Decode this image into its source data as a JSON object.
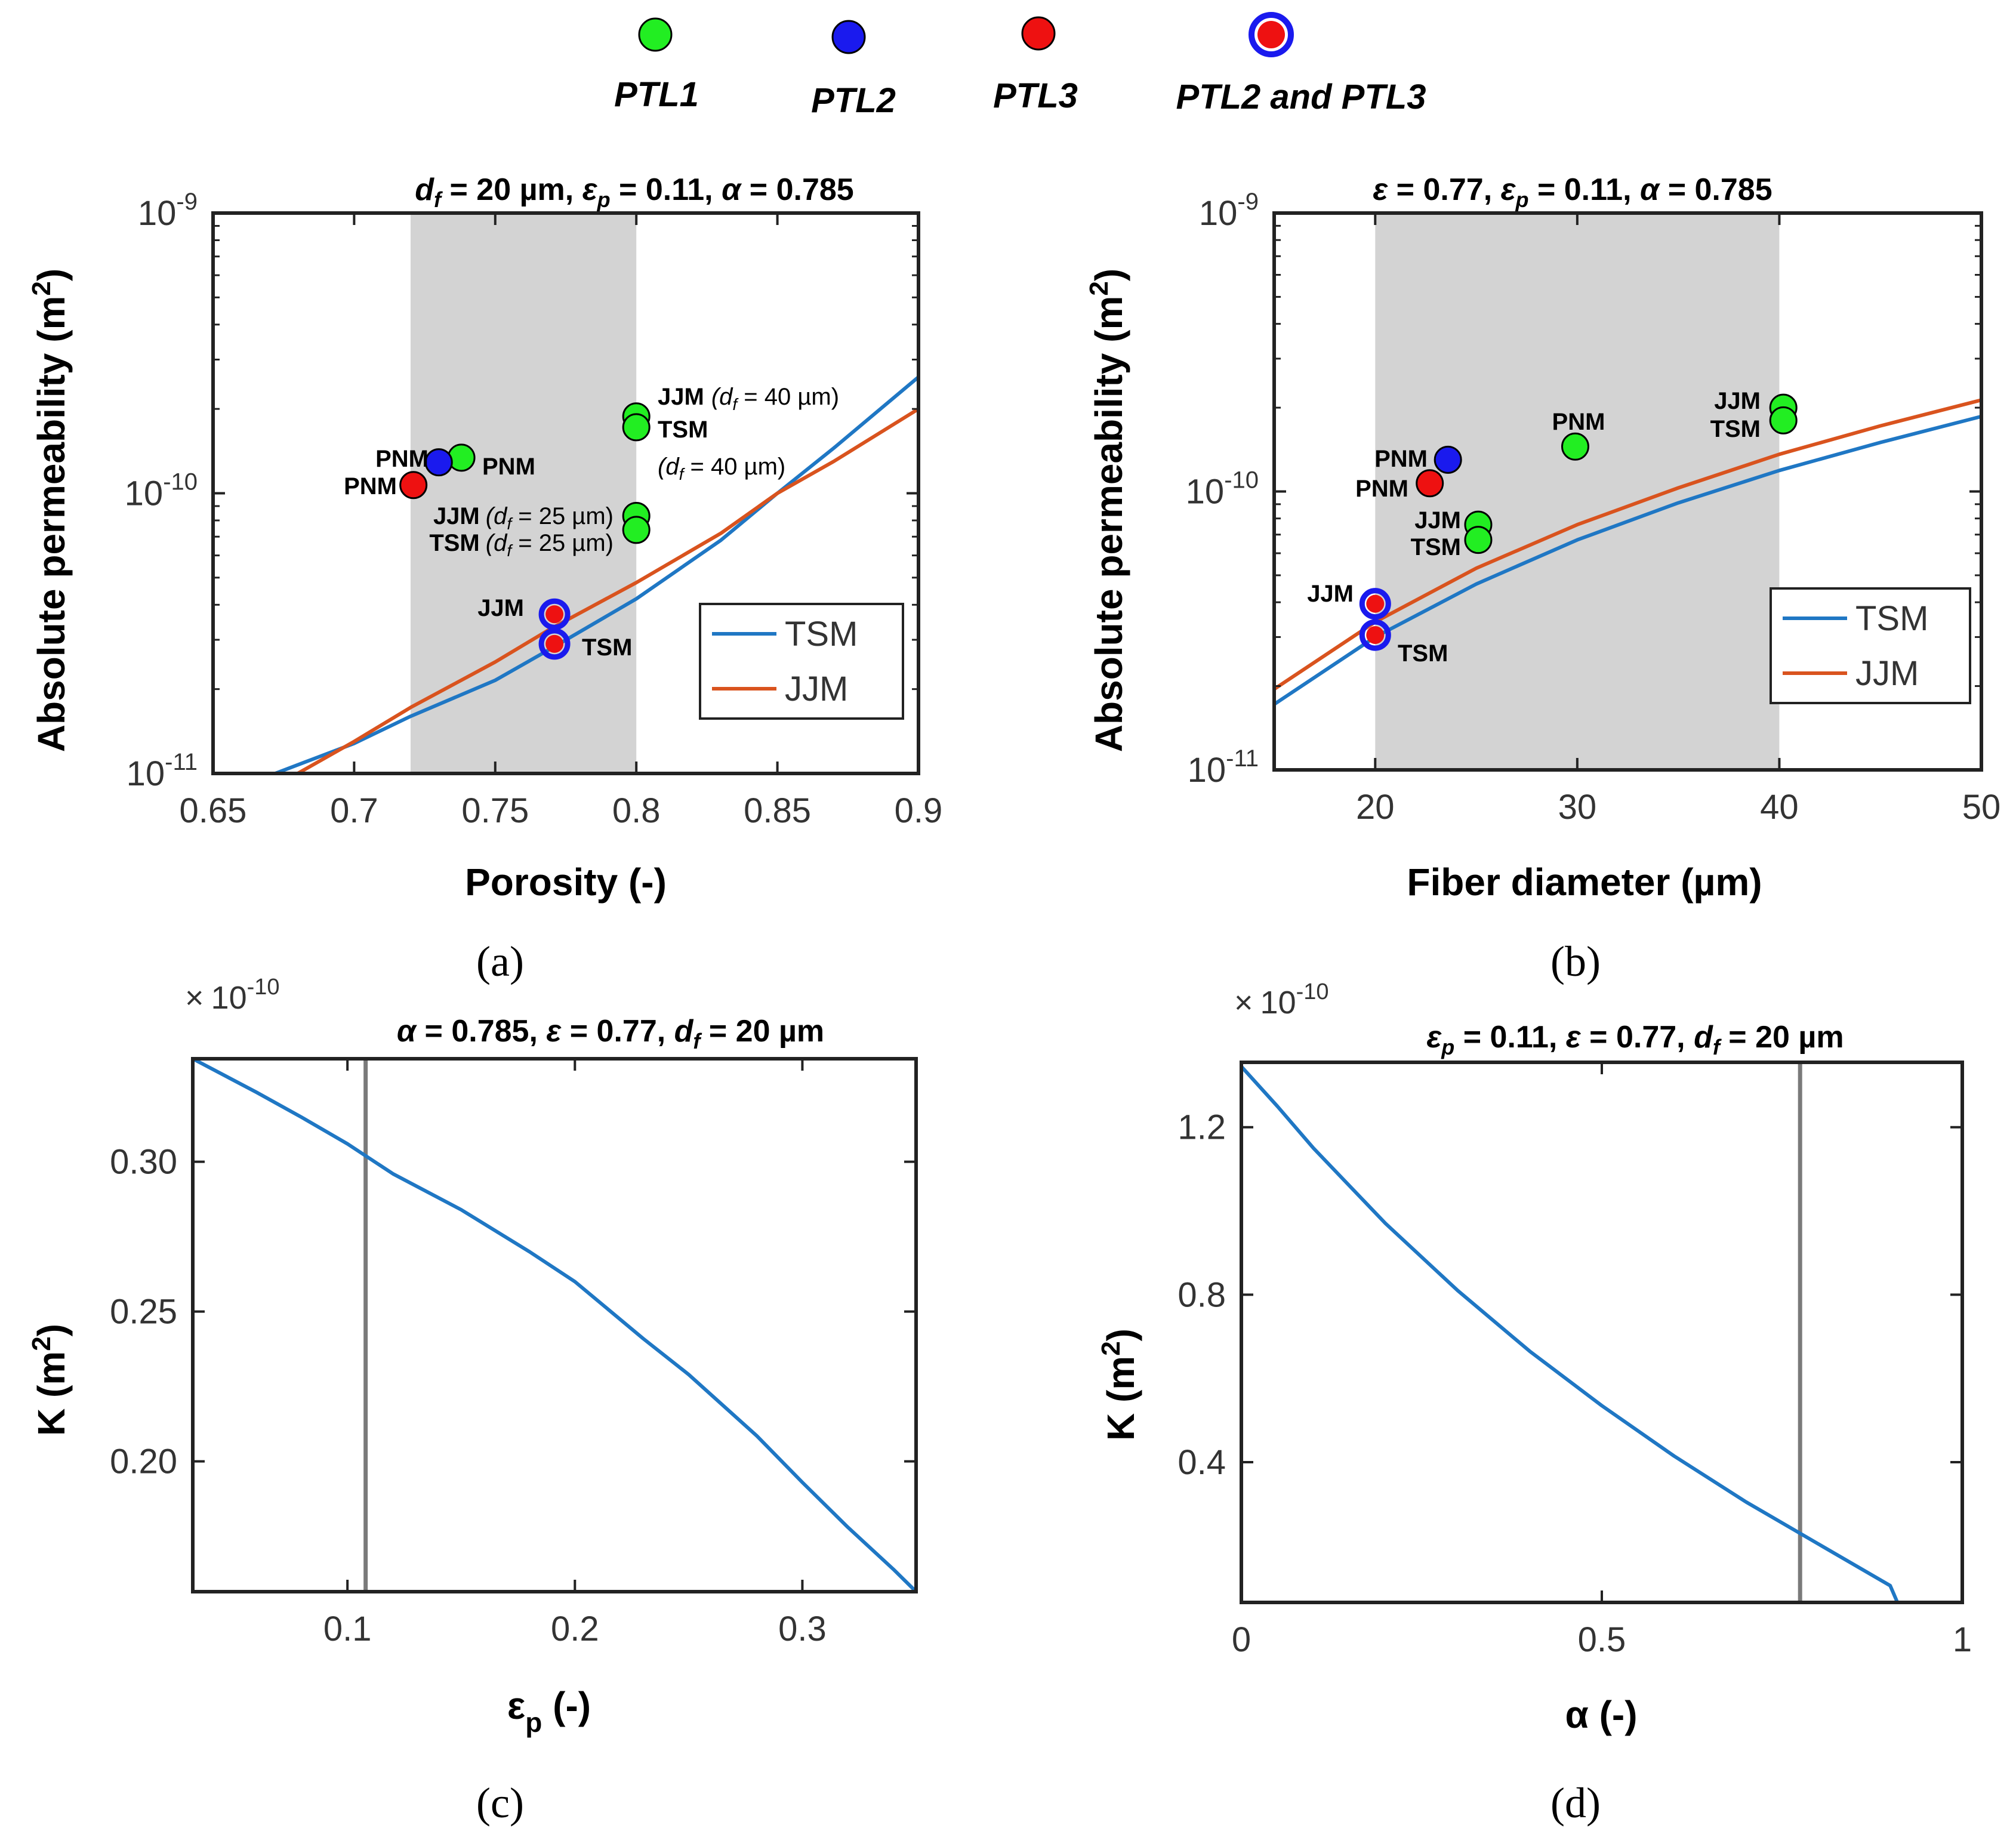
{
  "legend": {
    "items": [
      {
        "label": "PTL1",
        "fill": "#22ee22",
        "ring": null
      },
      {
        "label": "PTL2",
        "fill": "#1a1aee",
        "ring": null
      },
      {
        "label": "PTL3",
        "fill": "#ee1111",
        "ring": null
      },
      {
        "label": "PTL2 and PTL3",
        "fill": "#ee1111",
        "ring": "#1a1aee"
      }
    ]
  },
  "colors": {
    "tsm": "#1f77c4",
    "jjm": "#d9531e",
    "shade": "#d3d3d3",
    "vline": "#7a7a7a"
  },
  "panels": {
    "a": {
      "letter": "(a)"
    },
    "b": {
      "letter": "(b)"
    },
    "c": {
      "letter": "(c)"
    },
    "d": {
      "letter": "(d)"
    }
  },
  "chart_data": [
    {
      "id": "a",
      "type": "line",
      "title": {
        "df": "d",
        "df_sub": "f",
        "df_val": " = 20 µm, ",
        "ep": "ε",
        "ep_sub": "p",
        "ep_val": " = 0.11, ",
        "alpha": "α",
        "alpha_val": " = 0.785"
      },
      "xlabel": "Porosity (-)",
      "ylabel": "Absolute permeability (m",
      "ylabel_sup": "2",
      "ylabel_close": ")",
      "xscale": "linear",
      "yscale": "log",
      "xlim": [
        0.65,
        0.9
      ],
      "ylim": [
        1e-11,
        1e-09
      ],
      "xticks": [
        0.65,
        0.7,
        0.75,
        0.8,
        0.85,
        0.9
      ],
      "xtick_labels": [
        "0.65",
        "0.7",
        "0.75",
        "0.8",
        "0.85",
        "0.9"
      ],
      "yticks": [
        1e-11,
        1e-10,
        1e-09
      ],
      "ytick_labels": [
        {
          "base": "10",
          "exp": "-11"
        },
        {
          "base": "10",
          "exp": "-10"
        },
        {
          "base": "10",
          "exp": "-9"
        }
      ],
      "shade": [
        0.72,
        0.8
      ],
      "series": [
        {
          "name": "TSM",
          "x": [
            0.672,
            0.7,
            0.72,
            0.75,
            0.77,
            0.8,
            0.83,
            0.85,
            0.87,
            0.9
          ],
          "y": [
            1e-11,
            1.28e-11,
            1.6e-11,
            2.15e-11,
            2.8e-11,
            4.2e-11,
            6.8e-11,
            1e-10,
            1.45e-10,
            2.6e-10
          ]
        },
        {
          "name": "JJM",
          "x": [
            0.68,
            0.7,
            0.72,
            0.75,
            0.77,
            0.8,
            0.83,
            0.85,
            0.87,
            0.9
          ],
          "y": [
            1e-11,
            1.3e-11,
            1.72e-11,
            2.5e-11,
            3.3e-11,
            4.8e-11,
            7.2e-11,
            1e-10,
            1.3e-10,
            2e-10
          ]
        }
      ],
      "legend_position": "bottom-right",
      "legend_entries": [
        "TSM",
        "JJM"
      ],
      "points": [
        {
          "x": 0.738,
          "y": 1.34e-10,
          "fill": "#22ee22",
          "ring": null
        },
        {
          "x": 0.73,
          "y": 1.29e-10,
          "fill": "#1a1aee",
          "ring": null
        },
        {
          "x": 0.721,
          "y": 1.07e-10,
          "fill": "#ee1111",
          "ring": null
        },
        {
          "x": 0.8,
          "y": 1.88e-10,
          "fill": "#22ee22",
          "ring": null
        },
        {
          "x": 0.8,
          "y": 1.72e-10,
          "fill": "#22ee22",
          "ring": null
        },
        {
          "x": 0.8,
          "y": 8.3e-11,
          "fill": "#22ee22",
          "ring": null
        },
        {
          "x": 0.8,
          "y": 7.4e-11,
          "fill": "#22ee22",
          "ring": null
        },
        {
          "x": 0.771,
          "y": 3.7e-11,
          "fill": "#ee1111",
          "ring": "#1a1aee"
        },
        {
          "x": 0.771,
          "y": 2.9e-11,
          "fill": "#ee1111",
          "ring": "#1a1aee"
        }
      ],
      "annotations": [
        {
          "text": "PNM"
        },
        {
          "text": "PNM"
        },
        {
          "text": "PNM"
        },
        {
          "text": "JJM",
          "extra": "(d",
          "sub": "f",
          "rest": " = 40 µm)"
        },
        {
          "text": "TSM"
        },
        {
          "text": "",
          "extra": "(d",
          "sub": "f",
          "rest": " = 40 µm)"
        },
        {
          "text": "JJM",
          "extra": "(d",
          "sub": "f",
          "rest": " = 25 µm)"
        },
        {
          "text": "TSM",
          "extra": "(d",
          "sub": "f",
          "rest": " = 25 µm)"
        },
        {
          "text": "JJM"
        },
        {
          "text": "TSM"
        }
      ]
    },
    {
      "id": "b",
      "type": "line",
      "title": {
        "eps": "ε",
        "eps_val": " = 0.77, ",
        "ep": "ε",
        "ep_sub": "p",
        "ep_val": " = 0.11, ",
        "alpha": "α",
        "alpha_val": " = 0.785"
      },
      "xlabel": "Fiber diameter (µm)",
      "ylabel": "Absolute permeability (m",
      "ylabel_sup": "2",
      "ylabel_close": ")",
      "xscale": "linear",
      "yscale": "log",
      "xlim": [
        15,
        50
      ],
      "ylim": [
        1e-11,
        1e-09
      ],
      "xticks": [
        20,
        30,
        40,
        50
      ],
      "xtick_labels": [
        "20",
        "30",
        "40",
        "50"
      ],
      "yticks": [
        1e-11,
        1e-10,
        1e-09
      ],
      "ytick_labels": [
        {
          "base": "10",
          "exp": "-11"
        },
        {
          "base": "10",
          "exp": "-10"
        },
        {
          "base": "10",
          "exp": "-9"
        }
      ],
      "shade": [
        20,
        40
      ],
      "series": [
        {
          "name": "TSM",
          "x": [
            15,
            20,
            25,
            30,
            35,
            40,
            45,
            50
          ],
          "y": [
            1.72e-11,
            3e-11,
            4.65e-11,
            6.7e-11,
            9.1e-11,
            1.19e-10,
            1.5e-10,
            1.86e-10
          ]
        },
        {
          "name": "JJM",
          "x": [
            15,
            20,
            25,
            30,
            35,
            40,
            45,
            50
          ],
          "y": [
            1.95e-11,
            3.4e-11,
            5.3e-11,
            7.6e-11,
            1.03e-10,
            1.36e-10,
            1.72e-10,
            2.13e-10
          ]
        }
      ],
      "legend_position": "bottom-right",
      "legend_entries": [
        "TSM",
        "JJM"
      ],
      "points": [
        {
          "x": 29.9,
          "y": 1.45e-10,
          "fill": "#22ee22",
          "ring": null
        },
        {
          "x": 23.6,
          "y": 1.3e-10,
          "fill": "#1a1aee",
          "ring": null
        },
        {
          "x": 22.7,
          "y": 1.07e-10,
          "fill": "#ee1111",
          "ring": null
        },
        {
          "x": 40.2,
          "y": 2e-10,
          "fill": "#22ee22",
          "ring": null
        },
        {
          "x": 40.2,
          "y": 1.8e-10,
          "fill": "#22ee22",
          "ring": null
        },
        {
          "x": 25.1,
          "y": 7.6e-11,
          "fill": "#22ee22",
          "ring": null
        },
        {
          "x": 25.1,
          "y": 6.7e-11,
          "fill": "#22ee22",
          "ring": null
        },
        {
          "x": 20.0,
          "y": 3.95e-11,
          "fill": "#ee1111",
          "ring": "#1a1aee"
        },
        {
          "x": 20.0,
          "y": 3.05e-11,
          "fill": "#ee1111",
          "ring": "#1a1aee"
        }
      ],
      "annotations": [
        {
          "text": "PNM"
        },
        {
          "text": "PNM"
        },
        {
          "text": "PNM"
        },
        {
          "text": "JJM"
        },
        {
          "text": "TSM"
        },
        {
          "text": "JJM"
        },
        {
          "text": "TSM"
        },
        {
          "text": "JJM"
        },
        {
          "text": "TSM"
        }
      ]
    },
    {
      "id": "c",
      "type": "line",
      "title": {
        "alpha": "α",
        "alpha_val": " = 0.785, ",
        "eps": "ε",
        "eps_val": " = 0.77, ",
        "df": "d",
        "df_sub": "f",
        "df_val": " = 20 µm"
      },
      "multiplier": {
        "times": "×",
        "base": "10",
        "exp": "-10"
      },
      "xlabel": "ε",
      "xlabel_sub": "p",
      "xlabel_rest": " (-)",
      "ylabel": "K (m",
      "ylabel_sup": "2",
      "ylabel_close": ")",
      "xscale": "linear",
      "yscale": "linear",
      "xlim": [
        0.032,
        0.35
      ],
      "ylim": [
        0.1565,
        0.3344
      ],
      "xticks": [
        0.1,
        0.2,
        0.3
      ],
      "xtick_labels": [
        "0.1",
        "0.2",
        "0.3"
      ],
      "yticks": [
        0.2,
        0.25,
        0.3
      ],
      "ytick_labels": [
        "0.20",
        "0.25",
        "0.30"
      ],
      "vline": 0.108,
      "series": [
        {
          "name": "K",
          "x": [
            0.032,
            0.06,
            0.08,
            0.1,
            0.12,
            0.15,
            0.18,
            0.2,
            0.23,
            0.25,
            0.28,
            0.3,
            0.32,
            0.34,
            0.35
          ],
          "y": [
            0.3344,
            0.3232,
            0.3148,
            0.306,
            0.296,
            0.284,
            0.27,
            0.26,
            0.241,
            0.229,
            0.2085,
            0.193,
            0.178,
            0.164,
            0.1565
          ]
        }
      ]
    },
    {
      "id": "d",
      "type": "line",
      "title": {
        "ep": "ε",
        "ep_sub": "p",
        "ep_val": " = 0.11, ",
        "eps": "ε",
        "eps_val": " = 0.77, ",
        "df": "d",
        "df_sub": "f",
        "df_val": " = 20 µm"
      },
      "multiplier": {
        "times": "×",
        "base": "10",
        "exp": "-10"
      },
      "xlabel": "α (-)",
      "ylabel": "K (m",
      "ylabel_sup": "2",
      "ylabel_close": ")",
      "xscale": "linear",
      "yscale": "linear",
      "xlim": [
        0,
        1
      ],
      "ylim": [
        0.065,
        1.355
      ],
      "xticks": [
        0,
        0.5,
        1
      ],
      "xtick_labels": [
        "0",
        "0.5",
        "1"
      ],
      "yticks": [
        0.4,
        0.8,
        1.2
      ],
      "ytick_labels": [
        "0.4",
        "0.8",
        "1.2"
      ],
      "vline": 0.775,
      "series": [
        {
          "name": "K",
          "x": [
            0,
            0.05,
            0.1,
            0.2,
            0.3,
            0.4,
            0.5,
            0.6,
            0.7,
            0.8,
            0.9,
            0.91
          ],
          "y": [
            1.345,
            1.25,
            1.15,
            0.97,
            0.81,
            0.665,
            0.535,
            0.415,
            0.305,
            0.205,
            0.105,
            0.065
          ]
        }
      ]
    }
  ]
}
